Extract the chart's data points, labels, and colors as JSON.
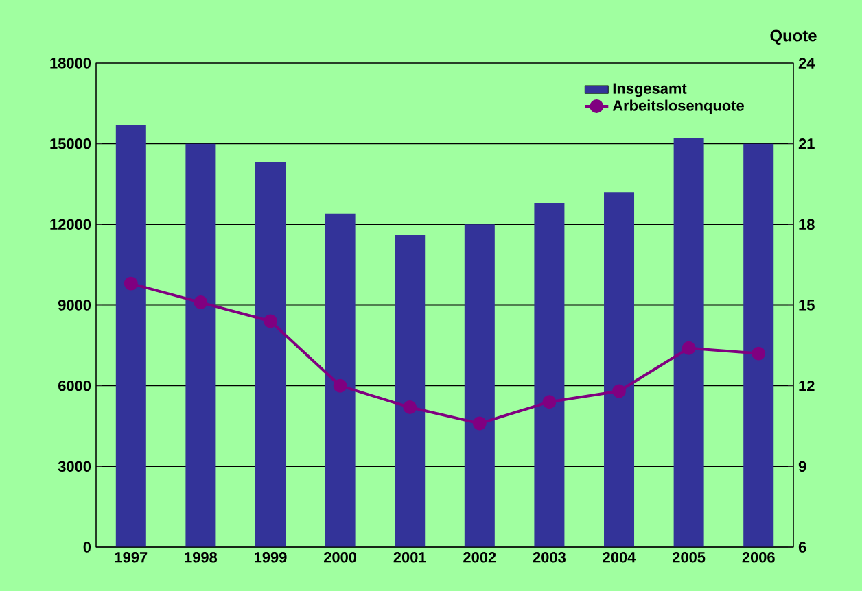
{
  "chart_data": {
    "type": "bar",
    "categories": [
      "1997",
      "1998",
      "1999",
      "2000",
      "2001",
      "2002",
      "2003",
      "2004",
      "2005",
      "2006"
    ],
    "series": [
      {
        "name": "Insgesamt",
        "color": "#333399",
        "values": [
          15700,
          15000,
          14300,
          12400,
          11600,
          12000,
          12800,
          13200,
          15200,
          15000
        ]
      },
      {
        "name": "Arbeitslosenquote",
        "type": "line",
        "axis": "y2",
        "color": "#800080",
        "values": [
          15.8,
          15.1,
          14.4,
          12.0,
          11.2,
          10.6,
          11.4,
          11.8,
          13.4,
          13.2
        ]
      }
    ],
    "ylim": [
      0,
      18000
    ],
    "yticks": [
      0,
      3000,
      6000,
      9000,
      12000,
      15000,
      18000
    ],
    "y2lim": [
      6,
      24
    ],
    "y2ticks": [
      6,
      9,
      12,
      15,
      18,
      21,
      24
    ],
    "y2label": "Quote",
    "grid": "y",
    "legend": "top right",
    "marker": "circle"
  }
}
